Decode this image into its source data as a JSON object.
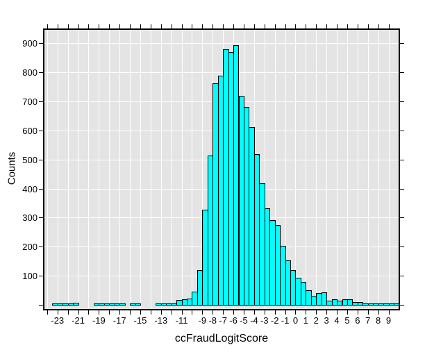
{
  "chart_data": {
    "type": "bar",
    "subtype": "histogram",
    "title": "",
    "xlabel": "ccFraudLogitScore",
    "ylabel": "Counts",
    "bin_width": 0.5,
    "first_bin_start": -24.0,
    "counts": [
      0,
      2,
      2,
      2,
      5,
      6,
      0,
      0,
      0,
      2,
      2,
      2,
      5,
      2,
      2,
      0,
      3,
      3,
      0,
      0,
      0,
      2,
      2,
      2,
      2,
      17,
      18,
      22,
      46,
      120,
      327,
      514,
      761,
      788,
      879,
      870,
      894,
      719,
      681,
      612,
      518,
      418,
      331,
      292,
      275,
      202,
      154,
      120,
      94,
      80,
      49,
      30,
      40,
      44,
      14,
      20,
      14,
      18,
      20,
      9,
      9,
      4,
      4,
      2,
      1,
      1,
      1,
      1
    ],
    "xlim": [
      -24.26,
      9.97
    ],
    "ylim": [
      0,
      946
    ],
    "grid": true,
    "x_minor_tick_step": 1,
    "x_tick_labels": [
      {
        "value": -23,
        "label": "-23"
      },
      {
        "value": -21,
        "label": "-21"
      },
      {
        "value": -19,
        "label": "-19"
      },
      {
        "value": -17,
        "label": "-17"
      },
      {
        "value": -15,
        "label": "-15"
      },
      {
        "value": -13,
        "label": "-13"
      },
      {
        "value": -11,
        "label": "-11"
      },
      {
        "value": -9,
        "label": "-9"
      },
      {
        "value": -8,
        "label": "-8"
      },
      {
        "value": -7,
        "label": "-7"
      },
      {
        "value": -6,
        "label": "-6"
      },
      {
        "value": -5,
        "label": "-5"
      },
      {
        "value": -4,
        "label": "-4"
      },
      {
        "value": -3,
        "label": "-3"
      },
      {
        "value": -2,
        "label": "-2"
      },
      {
        "value": -1,
        "label": "-1"
      },
      {
        "value": 0,
        "label": "0"
      },
      {
        "value": 1,
        "label": "1"
      },
      {
        "value": 2,
        "label": "2"
      },
      {
        "value": 3,
        "label": "3"
      },
      {
        "value": 4,
        "label": "4"
      },
      {
        "value": 5,
        "label": "5"
      },
      {
        "value": 6,
        "label": "6"
      },
      {
        "value": 7,
        "label": "7"
      },
      {
        "value": 8,
        "label": "8"
      },
      {
        "value": 9,
        "label": "9"
      }
    ],
    "y_ticks": [
      {
        "value": 0,
        "label": ""
      },
      {
        "value": 100,
        "label": "100"
      },
      {
        "value": 200,
        "label": "200"
      },
      {
        "value": 300,
        "label": "300"
      },
      {
        "value": 400,
        "label": "400"
      },
      {
        "value": 500,
        "label": "500"
      },
      {
        "value": 600,
        "label": "600"
      },
      {
        "value": 700,
        "label": "700"
      },
      {
        "value": 800,
        "label": "800"
      },
      {
        "value": 900,
        "label": "900"
      }
    ],
    "colors": {
      "bar_fill": "#00ffff",
      "bar_stroke": "#000000",
      "plot_bg": "#e4e4e4",
      "grid": "#ffffff",
      "frame": "#000000",
      "text": "#000000"
    }
  }
}
